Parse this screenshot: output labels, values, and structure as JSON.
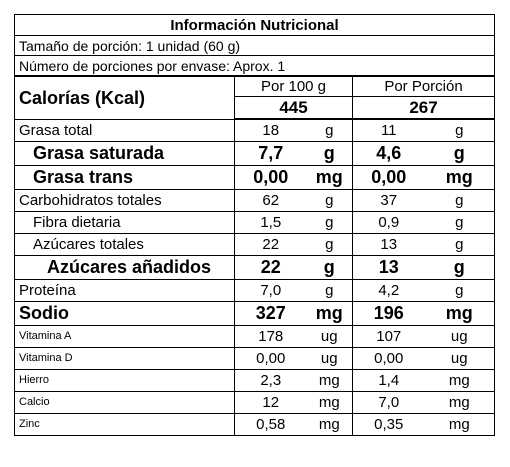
{
  "title": "Información Nutricional",
  "portion_size": "Tamaño de porción: 1 unidad (60 g)",
  "portions_per_container": "Número de porciones por envase: Aprox. 1",
  "calories": {
    "label": "Calorías (Kcal)",
    "col1_header": "Por 100 g",
    "col2_header": "Por Porción",
    "col1_value": "445",
    "col2_value": "267"
  },
  "rows": [
    {
      "label": "Grasa total",
      "v1": "18",
      "u1": "g",
      "v2": "11",
      "u2": "g"
    },
    {
      "label": "Grasa saturada",
      "v1": "7,7",
      "u1": "g",
      "v2": "4,6",
      "u2": "g"
    },
    {
      "label": "Grasa trans",
      "v1": "0,00",
      "u1": "mg",
      "v2": "0,00",
      "u2": "mg"
    },
    {
      "label": "Carbohidratos totales",
      "v1": "62",
      "u1": "g",
      "v2": "37",
      "u2": "g"
    },
    {
      "label": "Fibra dietaria",
      "v1": "1,5",
      "u1": "g",
      "v2": "0,9",
      "u2": "g"
    },
    {
      "label": "Azúcares totales",
      "v1": "22",
      "u1": "g",
      "v2": "13",
      "u2": "g"
    },
    {
      "label": "Azúcares añadidos",
      "v1": "22",
      "u1": "g",
      "v2": "13",
      "u2": "g"
    },
    {
      "label": "Proteína",
      "v1": "7,0",
      "u1": "g",
      "v2": "4,2",
      "u2": "g"
    },
    {
      "label": "Sodio",
      "v1": "327",
      "u1": "mg",
      "v2": "196",
      "u2": "mg"
    },
    {
      "label": "Vitamina A",
      "v1": "178",
      "u1": "ug",
      "v2": "107",
      "u2": "ug"
    },
    {
      "label": "Vitamina D",
      "v1": "0,00",
      "u1": "ug",
      "v2": "0,00",
      "u2": "ug"
    },
    {
      "label": "Hierro",
      "v1": "2,3",
      "u1": "mg",
      "v2": "1,4",
      "u2": "mg"
    },
    {
      "label": "Calcio",
      "v1": "12",
      "u1": "mg",
      "v2": "7,0",
      "u2": "mg"
    },
    {
      "label": "Zinc",
      "v1": "0,58",
      "u1": "mg",
      "v2": "0,35",
      "u2": "mg"
    }
  ]
}
